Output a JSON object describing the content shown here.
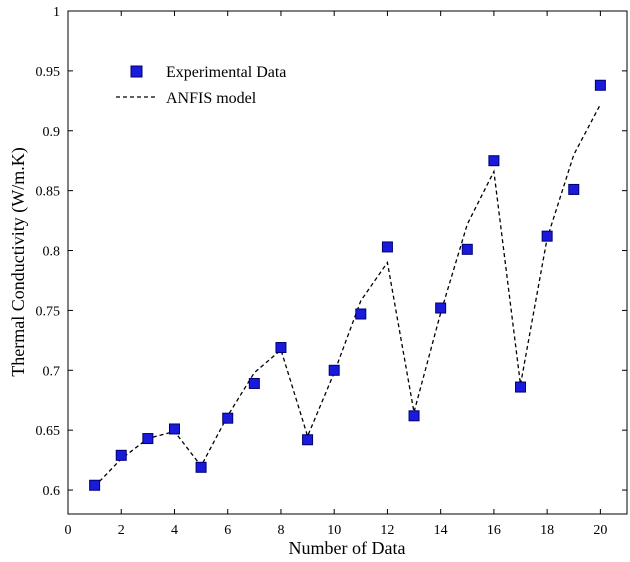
{
  "chart_data": {
    "type": "line",
    "title": "",
    "xlabel": "Number of Data",
    "ylabel": "Thermal Conductivity (W/m.K)",
    "xlim": [
      0,
      21
    ],
    "ylim": [
      0.58,
      1.0
    ],
    "xticks": [
      0,
      2,
      4,
      6,
      8,
      10,
      12,
      14,
      16,
      18,
      20
    ],
    "yticks": [
      0.6,
      0.65,
      0.7,
      0.75,
      0.8,
      0.85,
      0.9,
      0.95,
      1.0
    ],
    "ytick_labels": [
      "0.6",
      "0.65",
      "0.7",
      "0.75",
      "0.8",
      "0.85",
      "0.9",
      "0.95",
      "1"
    ],
    "grid": false,
    "legend_position": "top-left",
    "x": [
      1,
      2,
      3,
      4,
      5,
      6,
      7,
      8,
      9,
      10,
      11,
      12,
      13,
      14,
      15,
      16,
      17,
      18,
      19,
      20
    ],
    "series": [
      {
        "name": "Experimental Data",
        "style": "marker-square",
        "color": "#1a1adc",
        "values": [
          0.604,
          0.629,
          0.643,
          0.651,
          0.619,
          0.66,
          0.689,
          0.719,
          0.642,
          0.7,
          0.747,
          0.803,
          0.662,
          0.752,
          0.801,
          0.875,
          0.686,
          0.812,
          0.851,
          0.938
        ]
      },
      {
        "name": "ANFIS model",
        "style": "dashed-line",
        "color": "#000000",
        "values": [
          0.603,
          0.626,
          0.643,
          0.649,
          0.62,
          0.662,
          0.698,
          0.717,
          0.645,
          0.698,
          0.758,
          0.79,
          0.665,
          0.748,
          0.822,
          0.866,
          0.688,
          0.81,
          0.88,
          0.922
        ]
      }
    ]
  }
}
